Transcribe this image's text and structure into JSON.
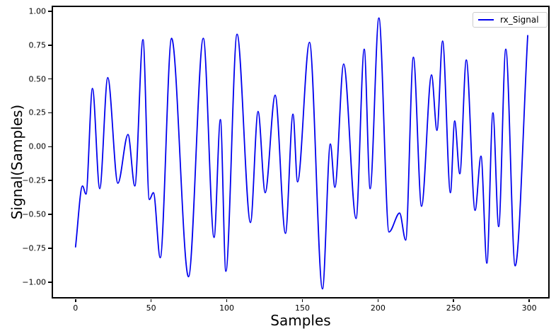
{
  "figure": {
    "background": "#ffffff"
  },
  "chart_data": {
    "type": "line",
    "title": "",
    "xlabel": "Samples",
    "ylabel": "Signal(Samples)",
    "grid": false,
    "legend_position": "upper right",
    "xlim": [
      -15.8,
      313.5
    ],
    "ylim": [
      -1.121,
      1.041
    ],
    "x_ticks": [
      0,
      50,
      100,
      150,
      200,
      250,
      300
    ],
    "x_tick_labels": [
      "0",
      "50",
      "100",
      "150",
      "200",
      "250",
      "300"
    ],
    "y_ticks": [
      1.0,
      0.75,
      0.5,
      0.25,
      0.0,
      -0.25,
      -0.5,
      -0.75,
      -1.0
    ],
    "y_tick_labels": [
      "1.00",
      "0.75",
      "0.50",
      "0.25",
      "0.00",
      "−0.25",
      "−0.50",
      "−0.75",
      "−1.00"
    ],
    "axis_color": "#000000",
    "series": [
      {
        "name": "rx_Signal",
        "color": "#0000ee",
        "points": [
          [
            0,
            -0.74
          ],
          [
            4.6,
            -0.29
          ],
          [
            6.9,
            -0.35
          ],
          [
            11.2,
            0.43
          ],
          [
            16,
            -0.31
          ],
          [
            21.3,
            0.51
          ],
          [
            28,
            -0.27
          ],
          [
            34.7,
            0.09
          ],
          [
            39.2,
            -0.29
          ],
          [
            44.6,
            0.79
          ],
          [
            48.8,
            -0.39
          ],
          [
            51.5,
            -0.34
          ],
          [
            56,
            -0.82
          ],
          [
            63.5,
            0.8
          ],
          [
            74.7,
            -0.96
          ],
          [
            84.5,
            0.8
          ],
          [
            91.6,
            -0.67
          ],
          [
            95.8,
            0.2
          ],
          [
            99.4,
            -0.92
          ],
          [
            106.8,
            0.83
          ],
          [
            115.7,
            -0.56
          ],
          [
            120.7,
            0.26
          ],
          [
            125.4,
            -0.34
          ],
          [
            132,
            0.38
          ],
          [
            138.8,
            -0.64
          ],
          [
            143.8,
            0.24
          ],
          [
            146.8,
            -0.26
          ],
          [
            154.7,
            0.77
          ],
          [
            163.3,
            -1.05
          ],
          [
            168.5,
            0.02
          ],
          [
            171.5,
            -0.3
          ],
          [
            177.3,
            0.61
          ],
          [
            185.5,
            -0.53
          ],
          [
            190.9,
            0.72
          ],
          [
            194.8,
            -0.31
          ],
          [
            200.6,
            0.95
          ],
          [
            207.3,
            -0.63
          ],
          [
            214.3,
            -0.49
          ],
          [
            218.3,
            -0.69
          ],
          [
            223.4,
            0.66
          ],
          [
            228.8,
            -0.44
          ],
          [
            235.4,
            0.53
          ],
          [
            239,
            0.12
          ],
          [
            242.7,
            0.78
          ],
          [
            247.9,
            -0.34
          ],
          [
            250.7,
            0.19
          ],
          [
            254.1,
            -0.2
          ],
          [
            258.4,
            0.64
          ],
          [
            264.2,
            -0.47
          ],
          [
            268.1,
            -0.07
          ],
          [
            272,
            -0.86
          ],
          [
            276,
            0.25
          ],
          [
            279.8,
            -0.59
          ],
          [
            284.5,
            0.72
          ],
          [
            290.7,
            -0.88
          ],
          [
            299,
            0.82
          ]
        ]
      }
    ]
  }
}
